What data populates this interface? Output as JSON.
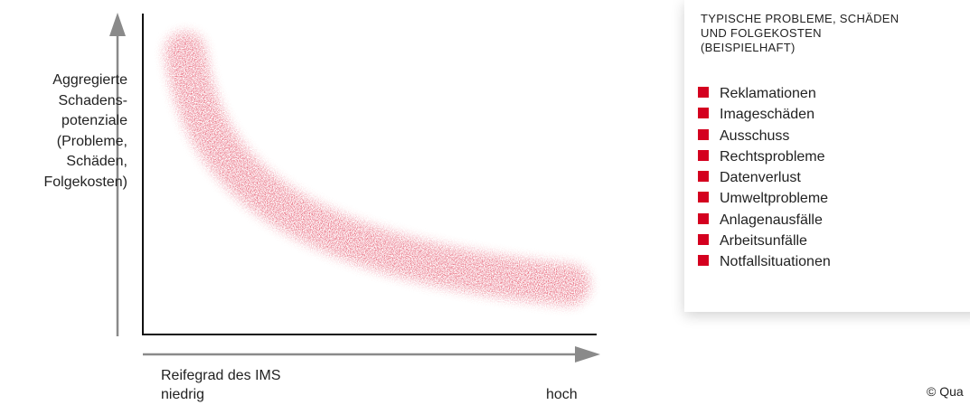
{
  "y_axis": {
    "label_lines": [
      "Aggregierte",
      "Schadens-",
      "potenziale",
      "(Probleme,",
      "Schäden,",
      "Folgekosten)"
    ]
  },
  "x_axis": {
    "label": "Reifegrad des IMS",
    "low": "niedrig",
    "high": "hoch"
  },
  "panel": {
    "title_lines": [
      "TYPISCHE PROBLEME, SCHÄDEN",
      "UND FOLGEKOSTEN",
      "(BEISPIELHAFT)"
    ],
    "items": [
      "Reklamationen",
      "Imageschäden",
      "Ausschuss",
      "Rechtsprobleme",
      "Datenverlust",
      "Umweltprobleme",
      "Anlagenausfälle",
      "Arbeitsunfälle",
      "Notfallsituationen"
    ]
  },
  "copyright": "© Qua"
}
